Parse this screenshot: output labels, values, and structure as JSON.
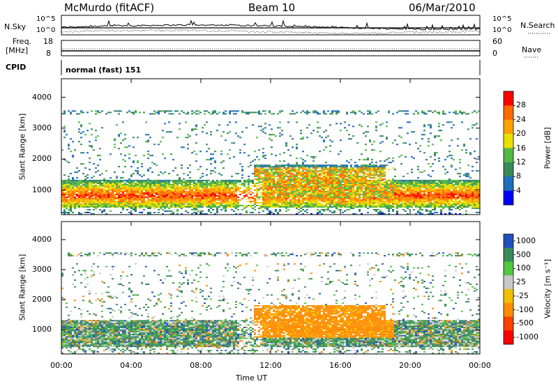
{
  "header": {
    "station": "McMurdo (fitACF)",
    "beam": "Beam 10",
    "date": "06/Mar/2010"
  },
  "strip_panels": {
    "nsky_label": "N.Sky",
    "nsearch_label": "N.Search",
    "noise_ticks": [
      "10^5",
      "10^0"
    ],
    "freq_label_line1": "Freq.",
    "freq_label_line2": "[MHz]",
    "freq_ticks": [
      "18",
      "8"
    ],
    "nave_label": "Nave",
    "nave_ticks": [
      "60",
      "0"
    ],
    "cpid_label": "CPID",
    "cpid_value": "normal (fast) 151"
  },
  "chart_data": [
    {
      "type": "heatmap",
      "parameter": "Power",
      "ylabel": "Slant Range [km]",
      "xlabel": "Time UT",
      "xlim_hours": [
        0,
        24
      ],
      "ylim": [
        200,
        4600
      ],
      "yticks": [
        1000,
        2000,
        3000,
        4000
      ],
      "colorbar": {
        "label": "Power [dB]",
        "ticks": [
          4,
          8,
          12,
          16,
          20,
          24,
          28
        ],
        "colors": [
          "#0000ff",
          "#1e6ebe",
          "#3a8a58",
          "#52b848",
          "#e8e000",
          "#ffa000",
          "#ff6a00",
          "#ff0000"
        ]
      },
      "grid": false
    },
    {
      "type": "heatmap",
      "parameter": "Velocity",
      "ylabel": "Slant Range [km]",
      "xlabel": "Time UT",
      "xlim_hours": [
        0,
        24
      ],
      "xticks": [
        "00:00",
        "04:00",
        "08:00",
        "12:00",
        "16:00",
        "20:00",
        "00:00"
      ],
      "ylim": [
        200,
        4600
      ],
      "yticks": [
        1000,
        2000,
        3000,
        4000
      ],
      "colorbar": {
        "label": "Velocity [m s⁻¹]",
        "ticks": [
          1000,
          500,
          100,
          25,
          -25,
          -100,
          -500,
          -1000
        ],
        "colors": [
          "#2050c0",
          "#3c8a5a",
          "#50c840",
          "#c8c8c8",
          "#f0c000",
          "#ff8c00",
          "#ff4000",
          "#ff0000"
        ]
      },
      "grid": false
    }
  ]
}
